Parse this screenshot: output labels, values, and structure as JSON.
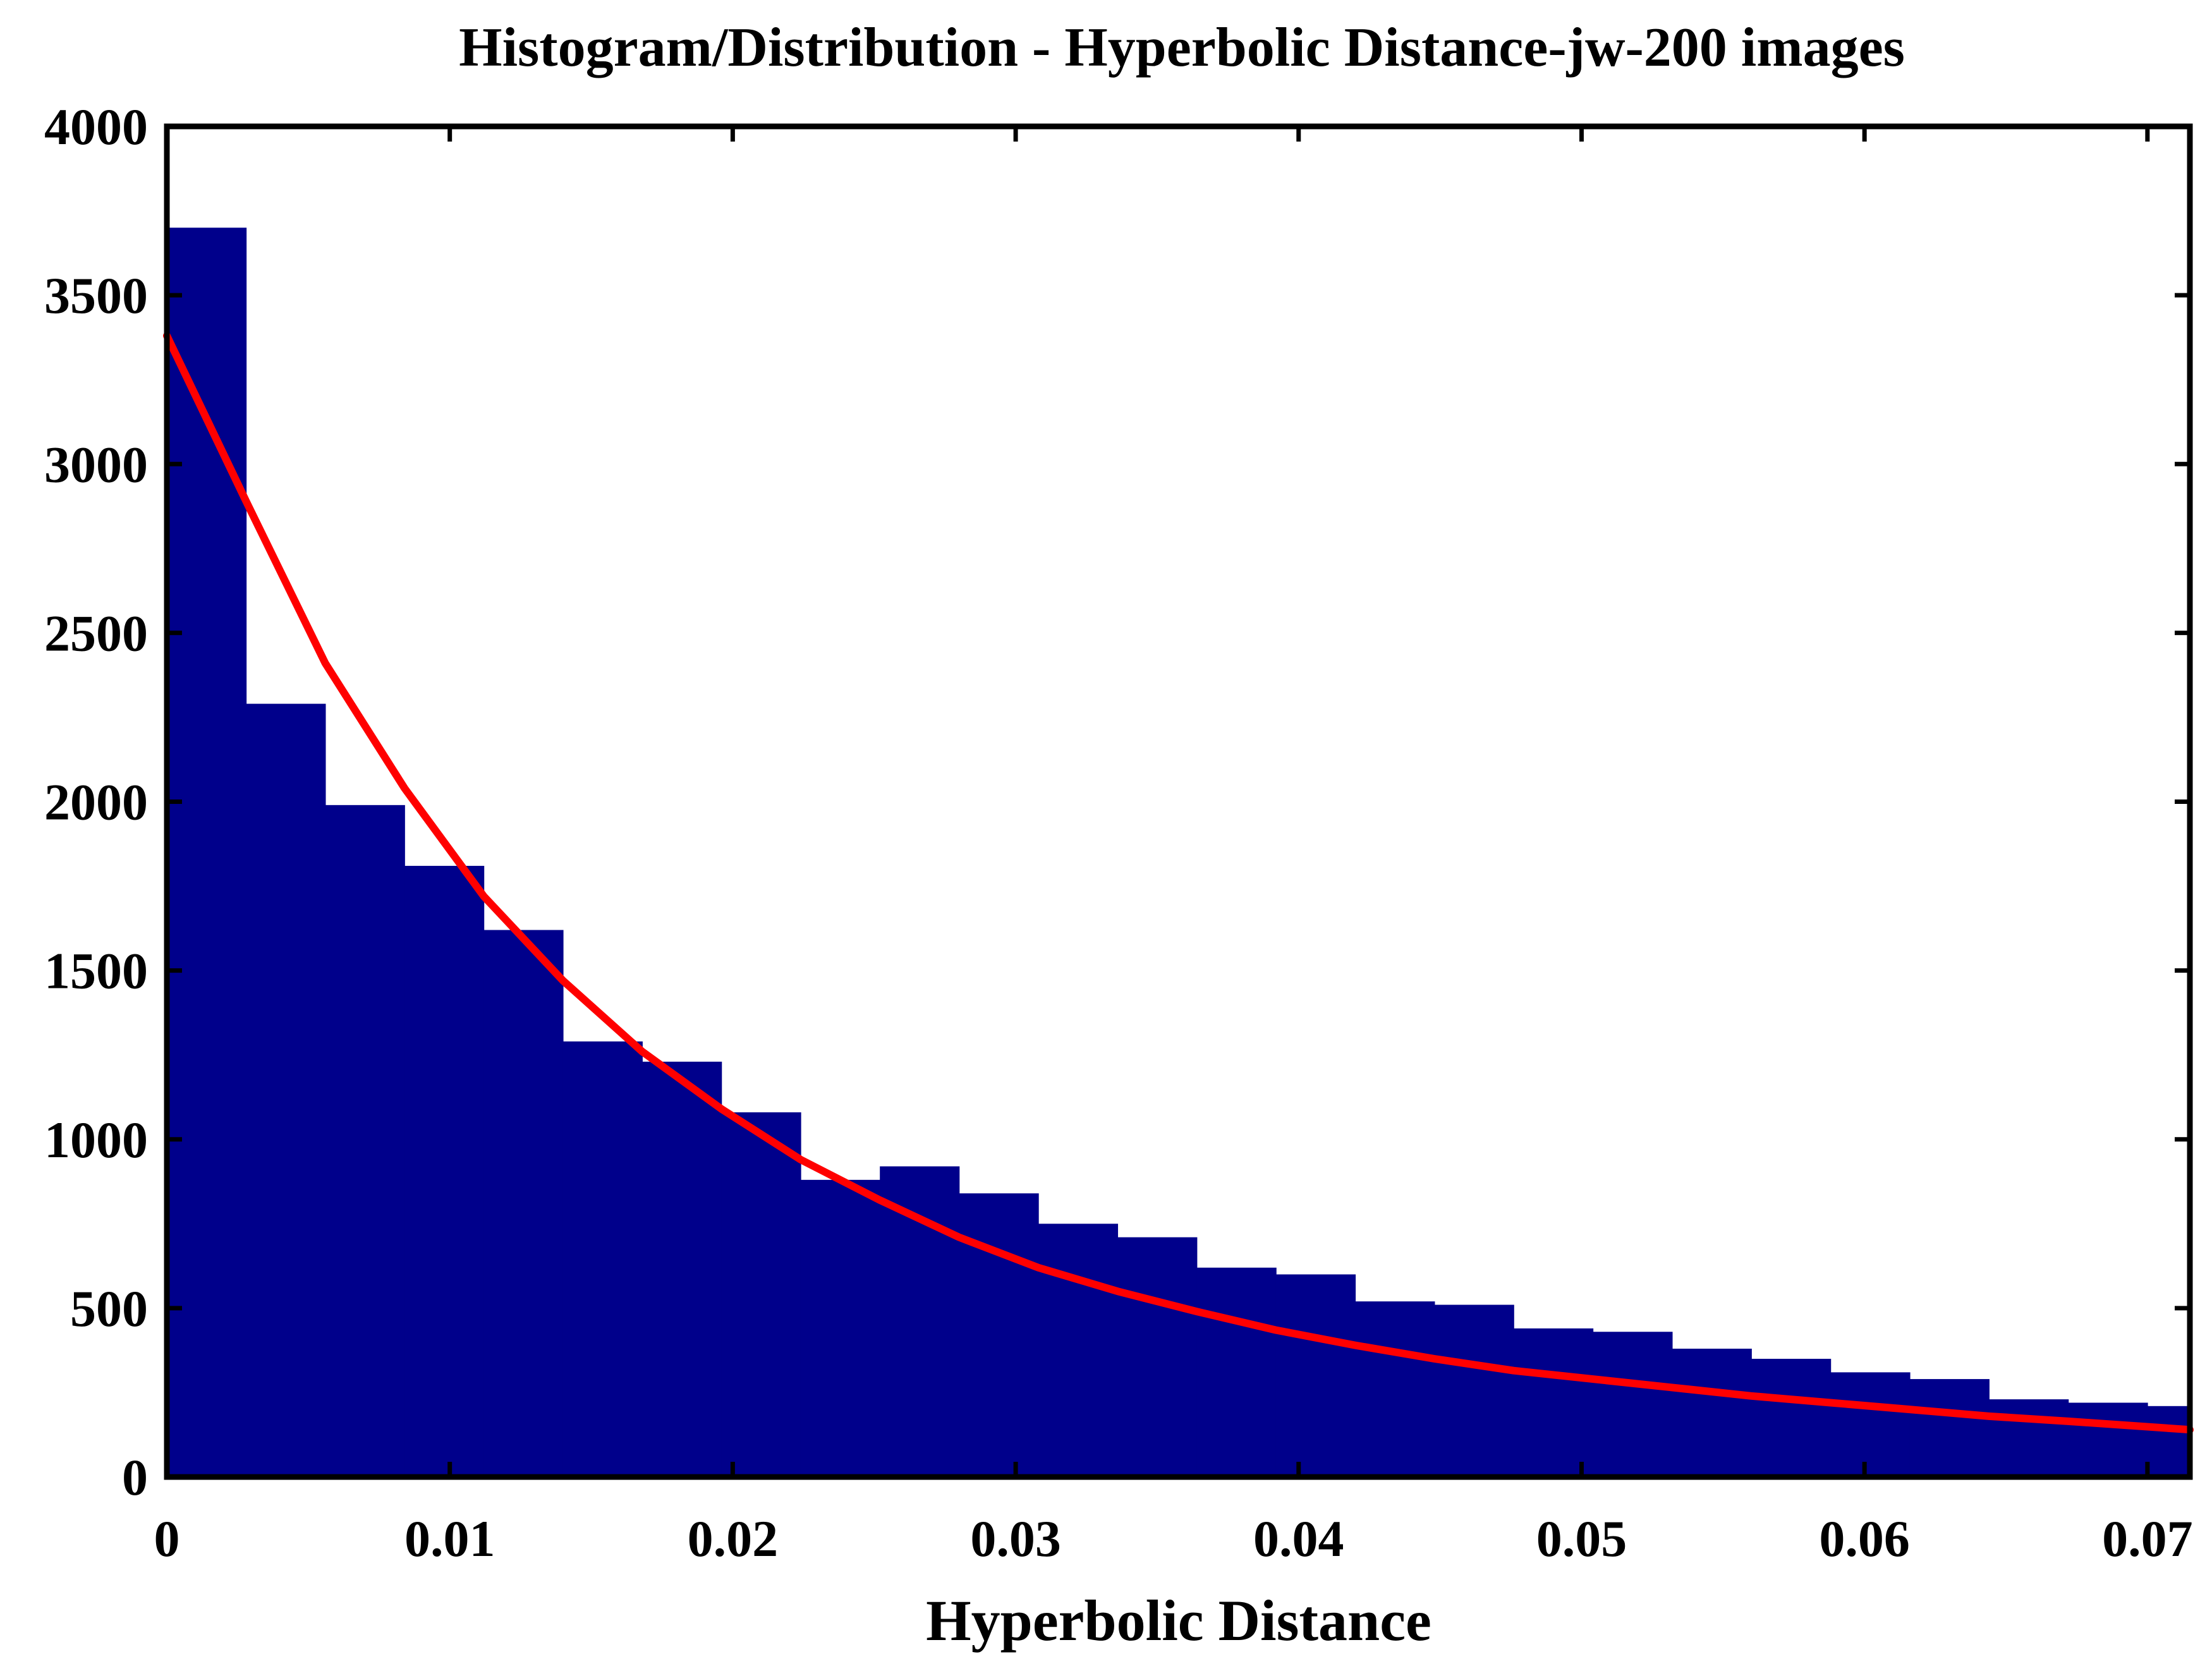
{
  "chart_data": {
    "type": "bar",
    "title": "Histogram/Distribution - Hyperbolic Distance-jw-200 images",
    "xlabel": "Hyperbolic Distance",
    "ylabel": "",
    "xlim": [
      0,
      0.0715
    ],
    "ylim": [
      0,
      4000
    ],
    "xticks": [
      0,
      0.01,
      0.02,
      0.03,
      0.04,
      0.05,
      0.06,
      0.07
    ],
    "xtick_labels": [
      "0",
      "0.01",
      "0.02",
      "0.03",
      "0.04",
      "0.05",
      "0.06",
      "0.07"
    ],
    "yticks": [
      0,
      500,
      1000,
      1500,
      2000,
      2500,
      3000,
      3500,
      4000
    ],
    "ytick_labels": [
      "0",
      "500",
      "1000",
      "1500",
      "2000",
      "2500",
      "3000",
      "3500",
      "4000"
    ],
    "grid": false,
    "bin_width": 0.0028,
    "series": [
      {
        "type": "histogram",
        "color": "#00008B",
        "bin_edges": [
          0,
          0.0028,
          0.0056,
          0.0084,
          0.0112,
          0.014,
          0.0168,
          0.0196,
          0.0224,
          0.0252,
          0.028,
          0.0308,
          0.0336,
          0.0364,
          0.0392,
          0.042,
          0.0448,
          0.0476,
          0.0504,
          0.0532,
          0.056,
          0.0588,
          0.0616,
          0.0644,
          0.0672,
          0.07,
          0.0715
        ],
        "values": [
          3700,
          2290,
          1990,
          1810,
          1620,
          1290,
          1230,
          1080,
          880,
          920,
          840,
          750,
          710,
          620,
          600,
          520,
          510,
          440,
          430,
          380,
          350,
          310,
          290,
          230,
          220,
          210
        ]
      },
      {
        "type": "line",
        "color": "#FF0000",
        "x": [
          0,
          0.0028,
          0.0056,
          0.0084,
          0.0112,
          0.014,
          0.0168,
          0.0196,
          0.0224,
          0.0252,
          0.028,
          0.0308,
          0.0336,
          0.0364,
          0.0392,
          0.042,
          0.0448,
          0.0476,
          0.0504,
          0.0532,
          0.056,
          0.0588,
          0.0616,
          0.0644,
          0.0672,
          0.0715
        ],
        "values": [
          3380,
          2890,
          2410,
          2040,
          1720,
          1470,
          1260,
          1090,
          940,
          820,
          710,
          620,
          550,
          490,
          435,
          390,
          350,
          315,
          290,
          265,
          240,
          220,
          200,
          180,
          165,
          140
        ]
      }
    ]
  }
}
